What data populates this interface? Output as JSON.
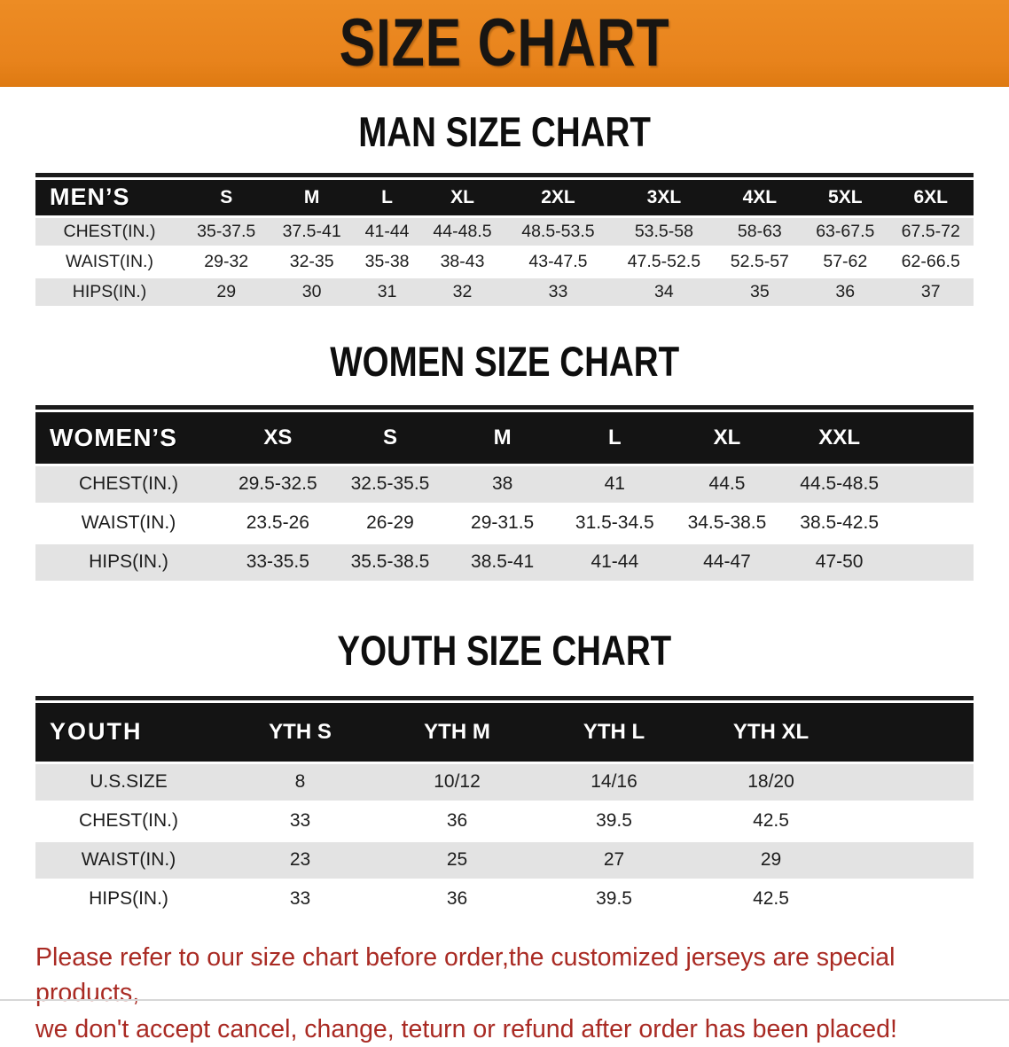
{
  "banner": {
    "title": "SIZE CHART",
    "bg_color": "#E8831C",
    "text_color": "#181512"
  },
  "chart_data": [
    {
      "type": "table",
      "title": "MAN SIZE CHART",
      "corner_label": "MEN’S",
      "columns": [
        "S",
        "M",
        "L",
        "XL",
        "2XL",
        "3XL",
        "4XL",
        "5XL",
        "6XL"
      ],
      "rows": [
        {
          "label": "CHEST(IN.)",
          "values": [
            "35-37.5",
            "37.5-41",
            "41-44",
            "44-48.5",
            "48.5-53.5",
            "53.5-58",
            "58-63",
            "63-67.5",
            "67.5-72"
          ]
        },
        {
          "label": "WAIST(IN.)",
          "values": [
            "29-32",
            "32-35",
            "35-38",
            "38-43",
            "43-47.5",
            "47.5-52.5",
            "52.5-57",
            "57-62",
            "62-66.5"
          ]
        },
        {
          "label": "HIPS(IN.)",
          "values": [
            "29",
            "30",
            "31",
            "32",
            "33",
            "34",
            "35",
            "36",
            "37"
          ]
        }
      ]
    },
    {
      "type": "table",
      "title": "WOMEN SIZE CHART",
      "corner_label": "WOMEN’S",
      "columns": [
        "XS",
        "S",
        "M",
        "L",
        "XL",
        "XXL"
      ],
      "rows": [
        {
          "label": "CHEST(IN.)",
          "values": [
            "29.5-32.5",
            "32.5-35.5",
            "38",
            "41",
            "44.5",
            "44.5-48.5"
          ]
        },
        {
          "label": "WAIST(IN.)",
          "values": [
            "23.5-26",
            "26-29",
            "29-31.5",
            "31.5-34.5",
            "34.5-38.5",
            "38.5-42.5"
          ]
        },
        {
          "label": "HIPS(IN.)",
          "values": [
            "33-35.5",
            "35.5-38.5",
            "38.5-41",
            "41-44",
            "44-47",
            "47-50"
          ]
        }
      ]
    },
    {
      "type": "table",
      "title": "YOUTH SIZE CHART",
      "corner_label": "YOUTH",
      "columns": [
        "YTH S",
        "YTH M",
        "YTH L",
        "YTH XL"
      ],
      "rows": [
        {
          "label": "U.S.SIZE",
          "values": [
            "8",
            "10/12",
            "14/16",
            "18/20"
          ]
        },
        {
          "label": "CHEST(IN.)",
          "values": [
            "33",
            "36",
            "39.5",
            "42.5"
          ]
        },
        {
          "label": "WAIST(IN.)",
          "values": [
            "23",
            "25",
            "27",
            "29"
          ]
        },
        {
          "label": "HIPS(IN.)",
          "values": [
            "33",
            "36",
            "39.5",
            "42.5"
          ]
        }
      ]
    }
  ],
  "footer": {
    "line1": "Please refer to our size chart before order,the customized jerseys are special products,",
    "line2": "we don't accept cancel, change, teturn or refund after order has been placed!",
    "text_color": "#A92A23"
  },
  "colors": {
    "orange_banner": "#E8831C",
    "table_header_bg": "#141414",
    "table_header_text": "#FFFFFF",
    "row_stripe": "#E3E3E3",
    "body_text": "#1D1D1D",
    "footer_red": "#A92A23"
  }
}
